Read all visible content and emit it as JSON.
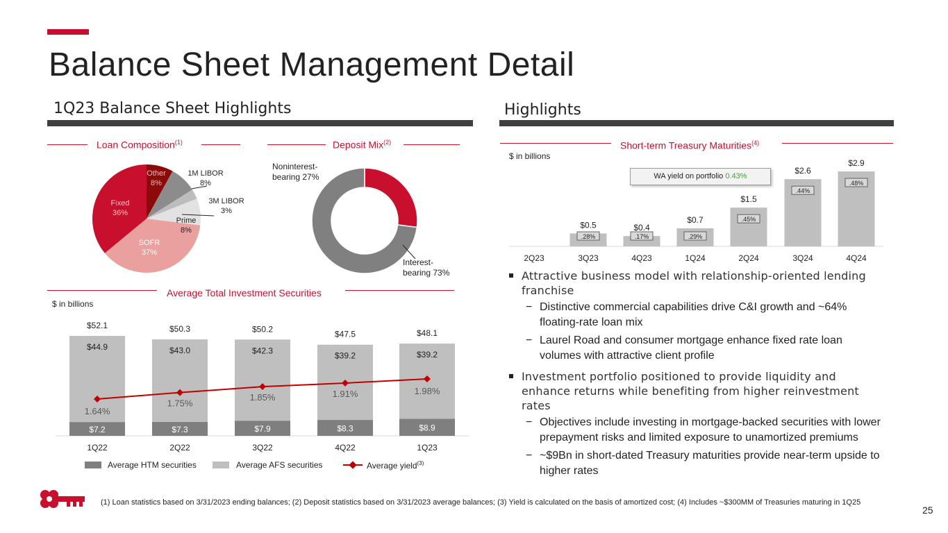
{
  "title": "Balance Sheet Management Detail",
  "left_section_title": "1Q23 Balance Sheet Highlights",
  "right_section_title": "Highlights",
  "brand_color": "#c8102e",
  "loan": {
    "title": "Loan Composition",
    "note": "(1)",
    "labels": {
      "other_name": "Other",
      "other_pct": "8%",
      "libor1_name": "1M LIBOR",
      "libor1_pct": "8%",
      "libor3_name": "3M LIBOR",
      "libor3_pct": "3%",
      "prime_name": "Prime",
      "prime_pct": "8%",
      "sofr_name": "SOFR",
      "sofr_pct": "37%",
      "fixed_name": "Fixed",
      "fixed_pct": "36%"
    }
  },
  "deposit": {
    "title": "Deposit Mix",
    "note": "(2)",
    "labels": {
      "nonint_line1": "Noninterest-",
      "nonint_line2": "bearing 27%",
      "int_line1": "Interest-",
      "int_line2": "bearing 73%"
    }
  },
  "investment": {
    "title": "Average Total Investment Securities",
    "unit": "$ in billions",
    "legend": {
      "htm": "Average HTM securities",
      "afs": "Average AFS securities",
      "yield": "Average yield",
      "yield_note": "(3)"
    }
  },
  "treasury": {
    "title": "Short-term Treasury Maturities",
    "note": "(4)",
    "unit": "$ in billions",
    "callout_label": "WA yield on portfolio",
    "callout_value": "0.43%"
  },
  "chart_data": [
    {
      "type": "pie",
      "title": "Loan Composition",
      "categories": [
        "Other",
        "1M LIBOR",
        "3M LIBOR",
        "Prime",
        "SOFR",
        "Fixed"
      ],
      "values": [
        8,
        8,
        3,
        8,
        37,
        36
      ],
      "colors": [
        "#8b0a0a",
        "#8c8c8c",
        "#bdbdbd",
        "#e2e2e2",
        "#eba0a0",
        "#c8102e"
      ]
    },
    {
      "type": "pie",
      "title": "Deposit Mix",
      "categories": [
        "Noninterest-bearing",
        "Interest-bearing"
      ],
      "values": [
        27,
        73
      ],
      "colors": [
        "#c8102e",
        "#808080"
      ]
    },
    {
      "type": "bar",
      "title": "Average Total Investment Securities",
      "categories": [
        "1Q22",
        "2Q22",
        "3Q22",
        "4Q22",
        "1Q23"
      ],
      "series": [
        {
          "name": "Average HTM securities",
          "values": [
            7.2,
            7.3,
            7.9,
            8.3,
            8.9
          ],
          "labels": [
            "$7.2",
            "$7.3",
            "$7.9",
            "$8.3",
            "$8.9"
          ],
          "color": "#7f7f7f"
        },
        {
          "name": "Average AFS securities",
          "values": [
            44.9,
            43.0,
            42.3,
            39.2,
            39.2
          ],
          "labels": [
            "$44.9",
            "$43.0",
            "$42.3",
            "$39.2",
            "$39.2"
          ],
          "color": "#bfbfbf"
        },
        {
          "name": "Average yield",
          "values": [
            1.64,
            1.75,
            1.85,
            1.91,
            1.98
          ],
          "labels": [
            "1.64%",
            "1.75%",
            "1.85%",
            "1.91%",
            "1.98%"
          ],
          "color": "#c00000"
        }
      ],
      "totals": [
        52.1,
        50.3,
        50.2,
        47.5,
        48.1
      ],
      "total_labels": [
        "$52.1",
        "$50.3",
        "$50.2",
        "$47.5",
        "$48.1"
      ],
      "ylabel": "$ in billions"
    },
    {
      "type": "bar",
      "title": "Short-term Treasury Maturities",
      "categories": [
        "2Q23",
        "3Q23",
        "4Q23",
        "1Q24",
        "2Q24",
        "3Q24",
        "4Q24"
      ],
      "values": [
        0,
        0.5,
        0.4,
        0.7,
        1.5,
        2.6,
        2.9
      ],
      "value_labels": [
        "",
        "$0.5",
        "$0.4",
        "$0.7",
        "$1.5",
        "$2.6",
        "$2.9"
      ],
      "yields": [
        "",
        ".28%",
        ".17%",
        ".29%",
        ".45%",
        ".44%",
        ".48%"
      ],
      "ylabel": "$ in billions"
    }
  ],
  "bullets": [
    {
      "text": "Attractive business model with relationship-oriented lending franchise",
      "subs": [
        "Distinctive commercial capabilities drive C&I growth and ~64% floating-rate loan mix",
        "Laurel Road and consumer mortgage enhance fixed rate loan volumes with attractive client profile"
      ]
    },
    {
      "text": "Investment portfolio positioned to provide liquidity and enhance returns while benefiting from higher reinvestment rates",
      "subs": [
        "Objectives include investing in mortgage-backed securities with lower prepayment risks and limited exposure to unamortized premiums",
        "~$9Bn in short-dated Treasury maturities provide near-term upside to higher rates"
      ]
    }
  ],
  "footnote": "(1) Loan statistics based on 3/31/2023 ending balances; (2) Deposit statistics based on 3/31/2023 average balances; (3) Yield is calculated on the basis of amortized cost; (4) Includes ~$300MM of Treasuries maturing in 1Q25",
  "page_number": "25"
}
